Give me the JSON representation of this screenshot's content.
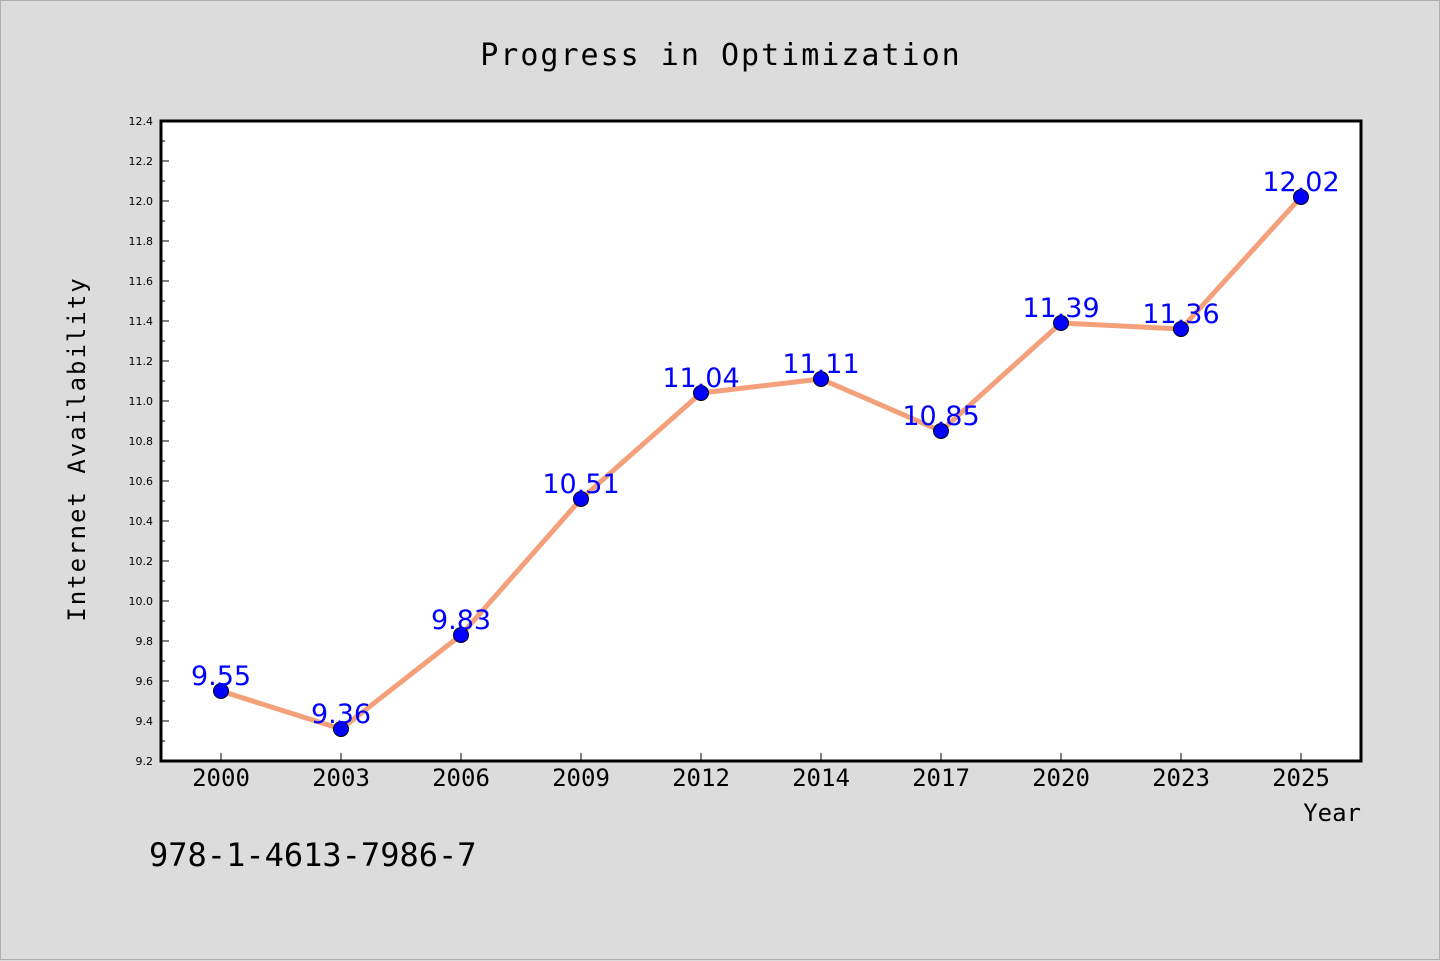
{
  "chart_data": {
    "type": "line",
    "title": "Progress in Optimization",
    "xlabel": "Year",
    "ylabel": "Internet Availability",
    "categories": [
      "2000",
      "2003",
      "2006",
      "2009",
      "2012",
      "2014",
      "2017",
      "2020",
      "2023",
      "2025"
    ],
    "series": [
      {
        "values": [
          9.55,
          9.36,
          9.83,
          10.51,
          11.04,
          11.11,
          10.85,
          11.39,
          11.36,
          12.02
        ],
        "data_labels": [
          "9.55",
          "9.36",
          "9.83",
          "10.51",
          "11.04",
          "11.11",
          "10.85",
          "11.39",
          "11.36",
          "12.02"
        ],
        "line_color": "#f4a07a",
        "marker_color": "#0000ff",
        "label_color": "#0000ff"
      }
    ],
    "ylim": [
      9.2,
      12.4
    ],
    "yticks": [
      "9.2",
      "9.4",
      "9.6",
      "9.8",
      "10.0",
      "10.2",
      "10.4",
      "10.6",
      "10.8",
      "11.0",
      "11.2",
      "11.4",
      "11.6",
      "11.8",
      "12.0",
      "12.2",
      "12.4"
    ],
    "grid": false,
    "legend": "none"
  },
  "annotation": {
    "isbn": "978-1-4613-7986-7"
  },
  "colors": {
    "background": "#dcdcdc",
    "plot_background": "#ffffff",
    "axis": "#000000"
  }
}
